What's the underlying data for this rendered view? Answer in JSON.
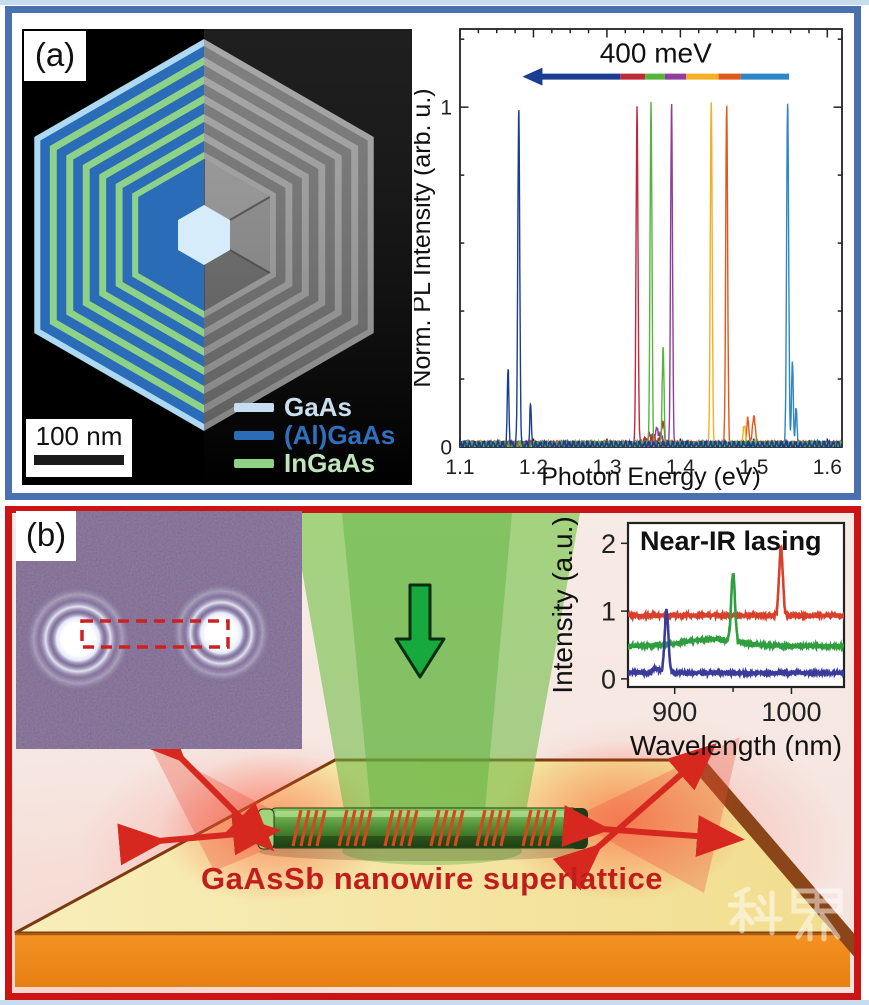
{
  "page": {
    "background": "#ffffff",
    "edge_strip_color": "#c7dcee"
  },
  "panel_a": {
    "label": "(a)",
    "border_color": "#4a70b0",
    "schematic": {
      "scale_bar": {
        "label": "100 nm"
      },
      "legend": [
        {
          "label": "GaAs",
          "swatch": "#c7ddf2",
          "text_color": "#c9def0"
        },
        {
          "label": "(Al)GaAs",
          "swatch": "#2a6cb8",
          "text_color": "#2f6fbe"
        },
        {
          "label": "InGaAs",
          "swatch": "#8ed287",
          "text_color": "#bfe6ba"
        }
      ],
      "colors": {
        "outer": "#aed9f2",
        "algaas": "#2a6cb8",
        "ingaas": "#8ed287",
        "gaas_core": "#d6ecfa"
      }
    }
  },
  "panel_b": {
    "label": "(b)",
    "border_color": "#cc1414",
    "caption": "GaAsSb nanowire superlattice",
    "caption_color": "#c21d1d",
    "watermark": "科界",
    "nanowire_color": "#4d8c33",
    "emission_arrow_color": "#d6281e",
    "laser_beam_color": "#5fae3c"
  },
  "chart_data": [
    {
      "id": "pl",
      "type": "line",
      "xlabel": "Photon Energy (eV)",
      "ylabel": "Norm. PL Intensity (arb. u.)",
      "xlim": [
        1.1,
        1.62
      ],
      "ylim": [
        0,
        1.23
      ],
      "xticks": [
        1.1,
        1.2,
        1.3,
        1.4,
        1.5,
        1.6
      ],
      "yticks": [
        0,
        1
      ],
      "yticks_minor": [
        0.2,
        0.4,
        0.6,
        0.8,
        1.2
      ],
      "xtick_minor_step": 0.025,
      "annotation_arrow": {
        "label": "400 meV",
        "y": 1.09,
        "tip_x": 1.185,
        "segments": [
          {
            "from": 1.185,
            "to": 1.318,
            "color": "#1b3d91"
          },
          {
            "from": 1.318,
            "to": 1.352,
            "color": "#bf2a3a"
          },
          {
            "from": 1.352,
            "to": 1.379,
            "color": "#57b33e"
          },
          {
            "from": 1.379,
            "to": 1.408,
            "color": "#8e3f9e"
          },
          {
            "from": 1.408,
            "to": 1.452,
            "color": "#f2b024"
          },
          {
            "from": 1.452,
            "to": 1.482,
            "color": "#e2571b"
          },
          {
            "from": 1.482,
            "to": 1.548,
            "color": "#2d86c8"
          }
        ]
      },
      "series": [
        {
          "name": "nanowire-sky",
          "color": "#2d86c8",
          "baseline": 0.012,
          "noise": 0.006,
          "peaks": [
            {
              "x": 1.546,
              "h": 1.0,
              "w": 0.0014
            },
            {
              "x": 1.5525,
              "h": 0.24,
              "w": 0.0012
            },
            {
              "x": 1.5575,
              "h": 0.1,
              "w": 0.0012
            }
          ]
        },
        {
          "name": "nanowire-orange",
          "color": "#e2571b",
          "baseline": 0.012,
          "noise": 0.006,
          "peaks": [
            {
              "x": 1.463,
              "h": 1.0,
              "w": 0.0013
            },
            {
              "x": 1.492,
              "h": 0.08,
              "w": 0.0015
            },
            {
              "x": 1.5,
              "h": 0.09,
              "w": 0.0018
            }
          ]
        },
        {
          "name": "nanowire-amber",
          "color": "#f2b024",
          "baseline": 0.012,
          "noise": 0.006,
          "peaks": [
            {
              "x": 1.442,
              "h": 1.0,
              "w": 0.0013
            },
            {
              "x": 1.487,
              "h": 0.05,
              "w": 0.002
            }
          ]
        },
        {
          "name": "nanowire-purple",
          "color": "#8e3f9e",
          "baseline": 0.012,
          "noise": 0.006,
          "peaks": [
            {
              "x": 1.388,
              "h": 1.0,
              "w": 0.0013
            },
            {
              "x": 1.368,
              "h": 0.04,
              "w": 0.006
            }
          ]
        },
        {
          "name": "nanowire-crimson",
          "color": "#bf2a3a",
          "baseline": 0.012,
          "noise": 0.006,
          "peaks": [
            {
              "x": 1.341,
              "h": 1.0,
              "w": 0.0013
            },
            {
              "x": 1.376,
              "h": 0.06,
              "w": 0.002
            },
            {
              "x": 1.36,
              "h": 0.025,
              "w": 0.008
            }
          ]
        },
        {
          "name": "nanowire-green",
          "color": "#57b33e",
          "baseline": 0.012,
          "noise": 0.006,
          "peaks": [
            {
              "x": 1.36,
              "h": 1.0,
              "w": 0.0013
            },
            {
              "x": 1.3765,
              "h": 0.3,
              "w": 0.0012
            }
          ]
        },
        {
          "name": "nanowire-navy",
          "color": "#1b3d91",
          "baseline": 0.012,
          "noise": 0.006,
          "peaks": [
            {
              "x": 1.18,
              "h": 1.0,
              "w": 0.0013
            },
            {
              "x": 1.1655,
              "h": 0.22,
              "w": 0.0011
            },
            {
              "x": 1.196,
              "h": 0.115,
              "w": 0.0011
            }
          ]
        }
      ],
      "layout": {
        "margin": {
          "l": 46,
          "r": 12,
          "t": 12,
          "b": 48
        },
        "tick_dir": "in",
        "mirror": true,
        "tick_font": 21,
        "label_font": 25,
        "ylabel_x": 16,
        "line_w": 1.4,
        "anno_font": 28,
        "tick_len": 8.5,
        "box_w": 1.8
      }
    },
    {
      "id": "near_ir",
      "type": "line",
      "title": "Near-IR lasing",
      "xlabel": "Wavelength (nm)",
      "ylabel": "Intensity (a.u.)",
      "xlim": [
        860,
        1045
      ],
      "ylim": [
        -0.12,
        2.3
      ],
      "xticks": [
        900,
        1000
      ],
      "xticks_minor": [
        950
      ],
      "yticks": [
        0,
        1,
        2
      ],
      "series": [
        {
          "name": "trace-red-991nm",
          "color": "#d8402c",
          "baseline": 0.95,
          "noise": 0.015,
          "peaks": [
            {
              "x": 991,
              "h": 1.0,
              "w": 1.6
            }
          ]
        },
        {
          "name": "trace-green-950nm",
          "color": "#2f9e3f",
          "baseline": 0.5,
          "noise": 0.015,
          "peaks": [
            {
              "x": 932,
              "h": 0.1,
              "w": 22
            },
            {
              "x": 950,
              "h": 1.0,
              "w": 1.6
            }
          ]
        },
        {
          "name": "trace-blue-893nm",
          "color": "#3b3b9c",
          "baseline": 0.1,
          "noise": 0.012,
          "peaks": [
            {
              "x": 884,
              "h": 0.07,
              "w": 2.5
            },
            {
              "x": 893,
              "h": 0.92,
              "w": 1.6
            }
          ]
        }
      ],
      "layout": {
        "margin": {
          "l": 82,
          "r": 10,
          "t": 10,
          "b": 78
        },
        "tick_dir": "out",
        "mirror": false,
        "tick_font": 27,
        "label_font": 28,
        "ylabel_x": 26,
        "line_w": 2.6,
        "title_font": 27,
        "tick_len": 7,
        "box_w": 2.2
      }
    }
  ]
}
